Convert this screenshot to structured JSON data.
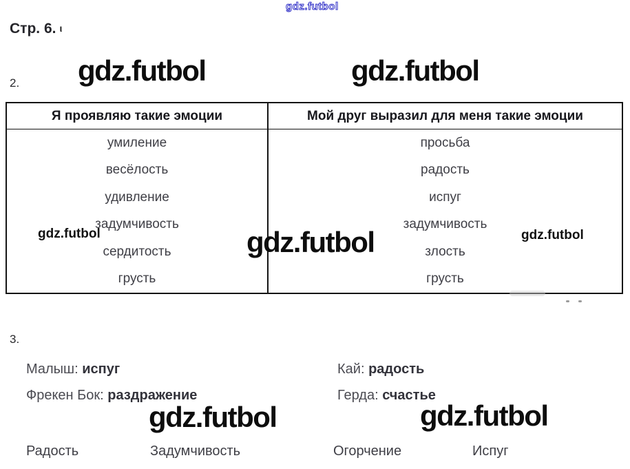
{
  "watermark": {
    "text": "gdz.futbol",
    "blue_color": "#3232c8"
  },
  "header": {
    "page_title": "Стр. 6.",
    "title_mark": "ι"
  },
  "task2": {
    "label": "2.",
    "table": {
      "header_left": "Я проявляю такие эмоции",
      "header_right": "Мой друг выразил для меня такие эмоции",
      "left_column": [
        "умиление",
        "весёлость",
        "удивление",
        "задумчивость",
        "сердитость",
        "грусть"
      ],
      "right_column": [
        "просьба",
        "радость",
        "испуг",
        "задумчивость",
        "злость",
        "грусть"
      ]
    }
  },
  "task3": {
    "label": "3.",
    "pairs": [
      {
        "name": "Малыш:",
        "value": "испуг"
      },
      {
        "name": "Кай:",
        "value": "радость"
      },
      {
        "name": "Фрекен Бок:",
        "value": "раздражение"
      },
      {
        "name": "Герда:",
        "value": "счастье"
      }
    ],
    "options": [
      "Радость",
      "Задумчивость",
      "Огорчение",
      "Испуг"
    ]
  }
}
